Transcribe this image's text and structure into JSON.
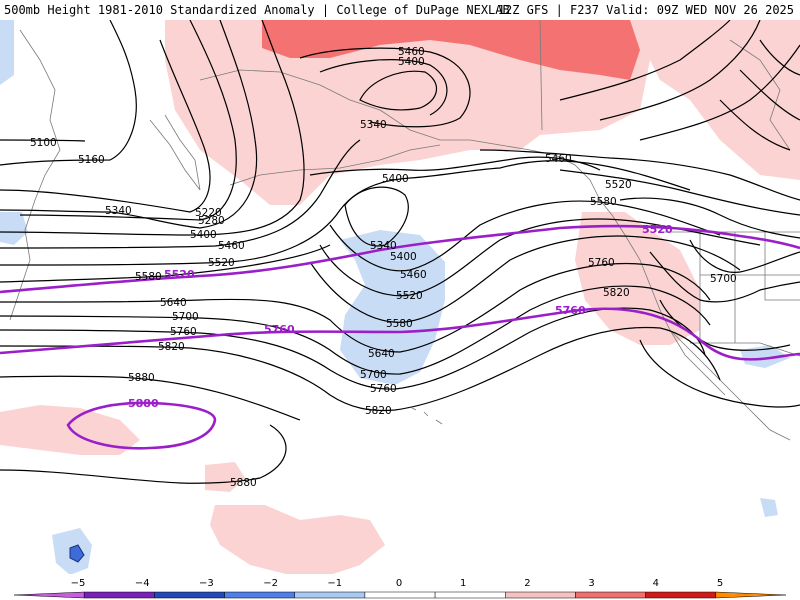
{
  "header": {
    "title": "500mb Height 1981-2010 Standardized Anomaly | College of DuPage NEXLAB",
    "model_info": "12Z GFS | F237 Valid: 09Z WED NOV 26 2025"
  },
  "contour_labels": {
    "c5460_top": "5460",
    "c5400_top": "5400",
    "c5340_low": "5340",
    "c5100": "5100",
    "c5160": "5160",
    "c5220": "5220",
    "c5280": "5280",
    "c5340_w": "5340",
    "c5400_w": "5400",
    "c5460_w": "5460",
    "c5520_w": "5520",
    "c5580_w": "5580",
    "c5460_ne": "5460",
    "c5520_ne": "5520",
    "c5580_ne": "5580",
    "c5400_mid": "5400",
    "c5340_mid": "5340",
    "c5400_trough": "5400",
    "c5460_trough": "5460",
    "c5520_trough": "5520",
    "c5580_trough": "5580",
    "c5640_trough": "5640",
    "c5700_trough": "5700",
    "c5760_trough": "5760",
    "c5640_w": "5640",
    "c5700_w": "5700",
    "c5760_w": "5760",
    "c5820_w": "5820",
    "c5820_mid": "5820",
    "c5880_w": "5880",
    "c5880_s": "5880",
    "c5760_e": "5760",
    "c5820_e": "5820",
    "c5700_e": "5700"
  },
  "highlight_labels": {
    "h5520_w": "5520",
    "h5520_e": "5520",
    "h5760_mid": "5760",
    "h5760_e": "5760",
    "h5880": "5880"
  },
  "colorbar": {
    "ticks": [
      "−5",
      "−4",
      "−3",
      "−2",
      "−1",
      "0",
      "1",
      "2",
      "3",
      "4",
      "5"
    ],
    "colors": [
      "#c75ee0",
      "#7a1fb8",
      "#2348b8",
      "#4f7ee6",
      "#a9c8f2",
      "#ffffff",
      "#ffffff",
      "#f6c1c1",
      "#f07070",
      "#d01a1a",
      "#ff8c00"
    ]
  }
}
